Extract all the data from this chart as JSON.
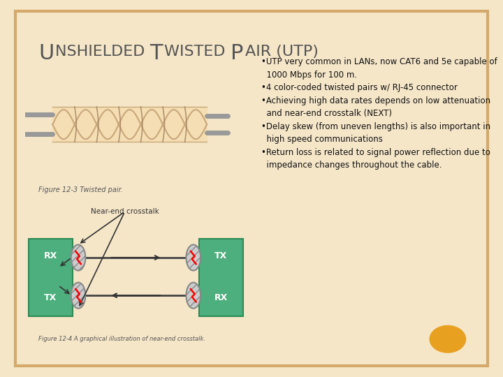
{
  "background_color": "#f5e6c8",
  "slide_bg": "#ffffff",
  "border_color": "#d4a96a",
  "fig12_3_label": "Figure 12-3 Twisted pair.",
  "fig12_4_label": "Figure 12-4 A graphical illustration of near-end crosstalk.",
  "near_end_label": "Near-end crosstalk",
  "box_color": "#4caf7d",
  "box_edge_color": "#2d8a55",
  "cable_color": "#f5deb3",
  "cable_line_color": "#c8a87a",
  "dot_color": "#e8a020",
  "text_color": "#333333",
  "label_color": "#555555",
  "gray_wire": "#999999",
  "connector_face": "#cccccc",
  "connector_edge": "#888888",
  "title_color": "#555555",
  "bullet_text": "•UTP very common in LANs, now CAT6 and 5e capable of\n  1000 Mbps for 100 m.\n•4 color-coded twisted pairs w/ RJ-45 connector\n•Achieving high data rates depends on low attenuation\n  and near-end crosstalk (NEXT)\n•Delay skew (from uneven lengths) is also important in\n  high speed communications\n•Return loss is related to signal power reflection due to\n  impedance changes throughout the cable."
}
